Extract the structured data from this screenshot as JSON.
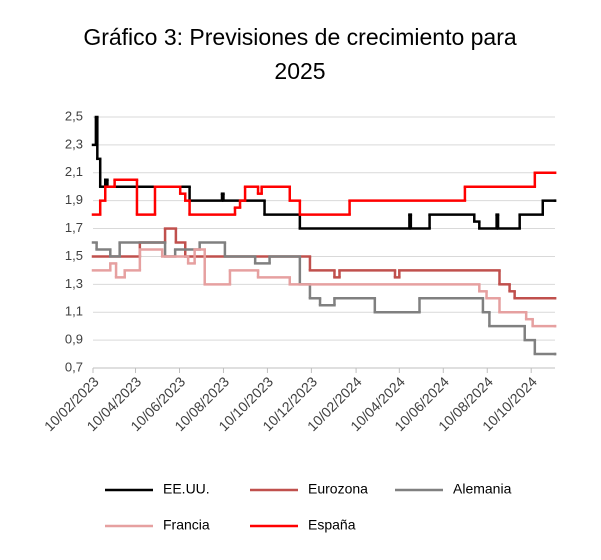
{
  "chart_data": {
    "type": "line",
    "title": "Gráfico 3: Previsiones de crecimiento  para 2025",
    "xlim": [
      "10/02/2023",
      "12/11/2024"
    ],
    "xticks": [
      "10/02/2023",
      "10/04/2023",
      "10/06/2023",
      "10/08/2023",
      "10/10/2023",
      "10/12/2023",
      "10/02/2024",
      "10/04/2024",
      "10/06/2024",
      "10/08/2024",
      "10/10/2024"
    ],
    "ylim": [
      0.7,
      2.5
    ],
    "yticks": [
      {
        "value": 0.7,
        "label": "0,7"
      },
      {
        "value": 0.9,
        "label": "0,9"
      },
      {
        "value": 1.1,
        "label": "1,1"
      },
      {
        "value": 1.3,
        "label": "1,3"
      },
      {
        "value": 1.5,
        "label": "1,5"
      },
      {
        "value": 1.7,
        "label": "1,7"
      },
      {
        "value": 1.9,
        "label": "1,9"
      },
      {
        "value": 2.1,
        "label": "2,1"
      },
      {
        "value": 2.3,
        "label": "2,3"
      },
      {
        "value": 2.5,
        "label": "2,5"
      }
    ],
    "grid": true,
    "step": true,
    "legend": "bottom",
    "series": [
      {
        "name": "EE.UU.",
        "color": "#000000",
        "x": [
          "10/02/2023",
          "14/02/2023",
          "16/02/2023",
          "20/02/2023",
          "27/02/2023",
          "02/03/2023",
          "24/06/2023",
          "08/08/2023",
          "10/08/2023",
          "06/10/2023",
          "24/11/2023",
          "24/04/2024",
          "26/04/2024",
          "22/05/2024",
          "23/07/2024",
          "30/07/2024",
          "23/08/2024",
          "25/08/2024",
          "24/09/2024",
          "26/10/2024",
          "12/11/2024"
        ],
        "values": [
          2.3,
          2.5,
          2.2,
          2.0,
          2.05,
          2.0,
          1.9,
          1.95,
          1.9,
          1.8,
          1.7,
          1.8,
          1.7,
          1.8,
          1.75,
          1.7,
          1.8,
          1.7,
          1.8,
          1.9,
          1.9
        ]
      },
      {
        "name": "Eurozona",
        "color": "#c0504d",
        "x": [
          "10/02/2023",
          "16/04/2023",
          "21/05/2023",
          "05/06/2023",
          "18/06/2023",
          "08/12/2023",
          "11/01/2024",
          "18/01/2024",
          "04/04/2024",
          "10/04/2024",
          "27/08/2024",
          "10/09/2024",
          "17/09/2024",
          "12/11/2024"
        ],
        "values": [
          1.5,
          1.6,
          1.7,
          1.6,
          1.5,
          1.4,
          1.35,
          1.4,
          1.35,
          1.4,
          1.3,
          1.25,
          1.2,
          1.2
        ]
      },
      {
        "name": "Alemania",
        "color": "#808080",
        "x": [
          "10/02/2023",
          "15/02/2023",
          "06/03/2023",
          "19/03/2023",
          "21/05/2023",
          "04/06/2023",
          "08/07/2023",
          "12/08/2023",
          "23/09/2023",
          "13/10/2023",
          "24/11/2023",
          "08/12/2023",
          "22/12/2023",
          "11/01/2024",
          "07/03/2024",
          "08/05/2024",
          "04/08/2024",
          "13/08/2024",
          "01/10/2024",
          "15/10/2024",
          "12/11/2024"
        ],
        "values": [
          1.6,
          1.55,
          1.5,
          1.6,
          1.5,
          1.55,
          1.6,
          1.5,
          1.45,
          1.5,
          1.3,
          1.2,
          1.15,
          1.2,
          1.1,
          1.2,
          1.1,
          1.0,
          0.9,
          0.8,
          0.8
        ]
      },
      {
        "name": "Francia",
        "color": "#e6a0a0",
        "x": [
          "10/02/2023",
          "06/03/2023",
          "14/03/2023",
          "26/03/2023",
          "16/04/2023",
          "17/05/2023",
          "22/06/2023",
          "01/07/2023",
          "15/07/2023",
          "19/08/2023",
          "27/09/2023",
          "10/11/2023",
          "30/07/2024",
          "09/08/2024",
          "27/08/2024",
          "03/10/2024",
          "12/10/2024",
          "12/11/2024"
        ],
        "values": [
          1.4,
          1.45,
          1.35,
          1.4,
          1.55,
          1.5,
          1.45,
          1.55,
          1.3,
          1.4,
          1.35,
          1.3,
          1.25,
          1.2,
          1.1,
          1.05,
          1.0,
          1.0
        ]
      },
      {
        "name": "España",
        "color": "#ff0000",
        "x": [
          "10/02/2023",
          "20/02/2023",
          "27/02/2023",
          "12/03/2023",
          "12/04/2023",
          "07/05/2023",
          "11/06/2023",
          "18/06/2023",
          "24/06/2023",
          "26/08/2023",
          "02/09/2023",
          "09/09/2023",
          "27/09/2023",
          "02/10/2023",
          "10/11/2023",
          "24/11/2023",
          "01/02/2024",
          "10/07/2024",
          "15/10/2024",
          "12/11/2024"
        ],
        "values": [
          1.8,
          1.9,
          2.0,
          2.05,
          1.8,
          2.0,
          1.95,
          1.9,
          1.8,
          1.85,
          1.9,
          2.0,
          1.95,
          2.0,
          1.9,
          1.8,
          1.9,
          2.0,
          2.1,
          2.1
        ]
      }
    ]
  }
}
